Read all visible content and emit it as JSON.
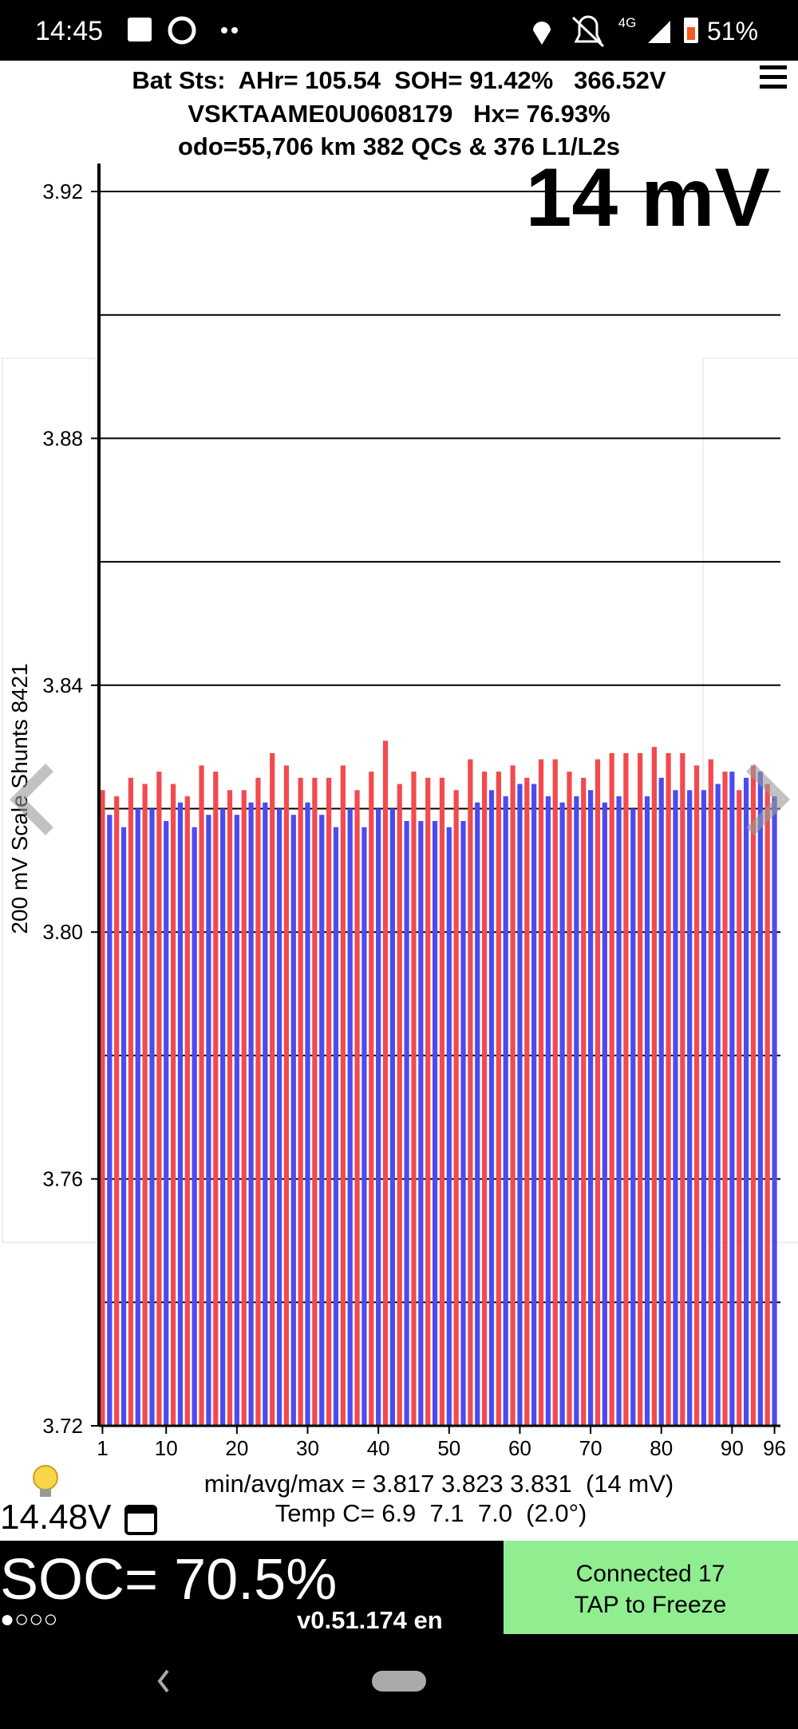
{
  "status_bar": {
    "time": "14:45",
    "network": "4G",
    "battery": "51%"
  },
  "header": {
    "line1": "Bat Sts:  AHr= 105.54  SOH= 91.42%   366.52V",
    "line2": "VSKTAAME0U0608179   Hx= 76.93%",
    "line3": "odo=55,706 km 382 QCs & 376 L1/L2s"
  },
  "chart_data": {
    "type": "bar",
    "annotation": "14 mV",
    "y_label": "200 mV Scale Shunts 8421",
    "x": [
      1,
      2,
      3,
      4,
      5,
      6,
      7,
      8,
      9,
      10,
      11,
      12,
      13,
      14,
      15,
      16,
      17,
      18,
      19,
      20,
      21,
      22,
      23,
      24,
      25,
      26,
      27,
      28,
      29,
      30,
      31,
      32,
      33,
      34,
      35,
      36,
      37,
      38,
      39,
      40,
      41,
      42,
      43,
      44,
      45,
      46,
      47,
      48,
      49,
      50,
      51,
      52,
      53,
      54,
      55,
      56,
      57,
      58,
      59,
      60,
      61,
      62,
      63,
      64,
      65,
      66,
      67,
      68,
      69,
      70,
      71,
      72,
      73,
      74,
      75,
      76,
      77,
      78,
      79,
      80,
      81,
      82,
      83,
      84,
      85,
      86,
      87,
      88,
      89,
      90,
      91,
      92,
      93,
      94,
      95,
      96
    ],
    "values": [
      3.823,
      3.819,
      3.822,
      3.817,
      3.825,
      3.82,
      3.824,
      3.82,
      3.826,
      3.818,
      3.824,
      3.821,
      3.822,
      3.817,
      3.827,
      3.819,
      3.826,
      3.82,
      3.823,
      3.819,
      3.823,
      3.821,
      3.825,
      3.821,
      3.829,
      3.82,
      3.827,
      3.819,
      3.825,
      3.821,
      3.825,
      3.819,
      3.825,
      3.817,
      3.827,
      3.82,
      3.823,
      3.817,
      3.826,
      3.82,
      3.831,
      3.82,
      3.824,
      3.818,
      3.826,
      3.818,
      3.825,
      3.818,
      3.825,
      3.817,
      3.823,
      3.818,
      3.828,
      3.821,
      3.826,
      3.823,
      3.826,
      3.822,
      3.827,
      3.824,
      3.825,
      3.824,
      3.828,
      3.822,
      3.828,
      3.821,
      3.826,
      3.822,
      3.825,
      3.823,
      3.828,
      3.821,
      3.829,
      3.822,
      3.829,
      3.82,
      3.829,
      3.822,
      3.83,
      3.825,
      3.829,
      3.823,
      3.829,
      3.823,
      3.827,
      3.823,
      3.828,
      3.824,
      3.826,
      3.826,
      3.823,
      3.825,
      3.827,
      3.826,
      3.824,
      3.822
    ],
    "colors": [
      "#f24a4e",
      "#4b4bf0"
    ],
    "xlim": [
      0.5,
      96.5
    ],
    "xticks": [
      1,
      10,
      20,
      30,
      40,
      50,
      60,
      70,
      80,
      90,
      96
    ],
    "ylim": [
      3.72,
      3.92
    ],
    "yticks": [
      3.72,
      3.76,
      {
        "value": 3.8,
        "label": "3.80"
      },
      3.84,
      3.88,
      3.92
    ],
    "yminor": [
      3.74,
      3.78,
      3.82,
      3.86,
      3.9
    ],
    "grid": true
  },
  "footer": {
    "stats": "min/avg/max = 3.817 3.823 3.831  (14 mV)",
    "temp": "Temp C= 6.9  7.1  7.0  (2.0°)",
    "voltage": "14.48V",
    "soc": "SOC= 70.5%",
    "dots": "●○○○",
    "version": "v0.51.174 en",
    "button_line1": "Connected 17",
    "button_line2": "TAP to Freeze"
  }
}
